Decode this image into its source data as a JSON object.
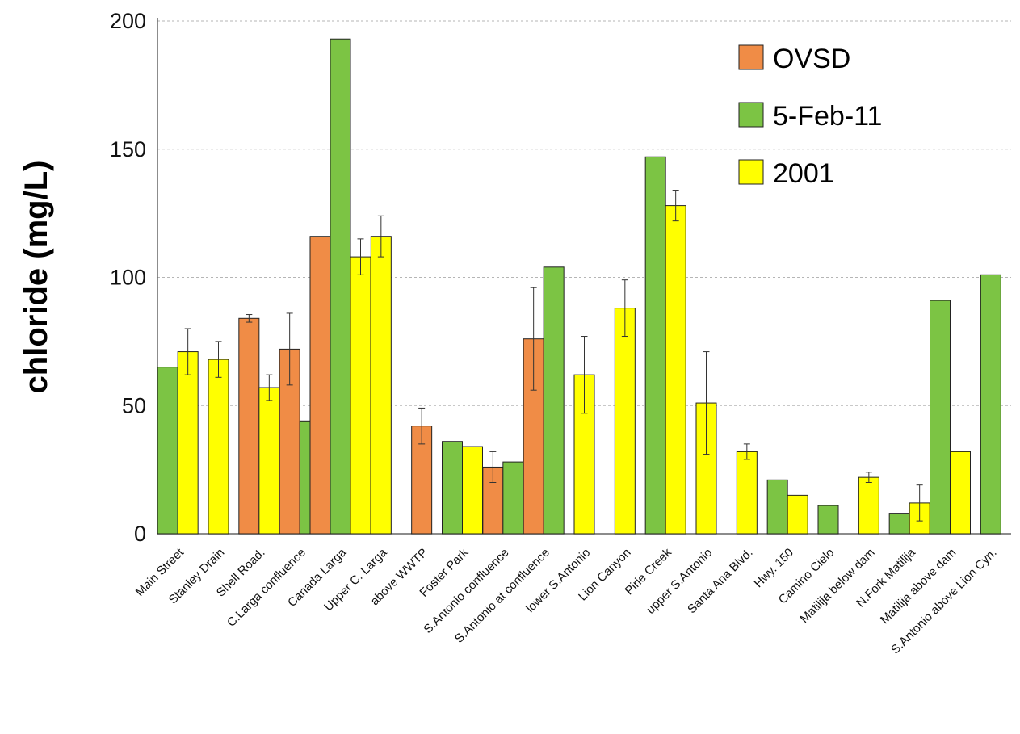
{
  "chart_data": {
    "type": "bar",
    "title": "",
    "xlabel": "",
    "ylabel": "chloride (mg/L)",
    "ylim": [
      0,
      200
    ],
    "yticks": [
      0,
      50,
      100,
      150,
      200
    ],
    "grid": true,
    "legend_position": "top-right",
    "categories": [
      "Main Street",
      "Stanley Drain",
      "Shell Road.",
      "C.Larga confluence",
      "Canada Larga",
      "Upper C. Larga",
      "above WWTP",
      "Foster Park",
      "S.Antonio confluence",
      "S.Antonio at confluence",
      "lower S.Antonio",
      "Lion Canyon",
      "Pirie Creek",
      "upper S.Antonio",
      "Santa Ana Blvd.",
      "Hwy. 150",
      "Camino Cielo",
      "Matilija below dam",
      "N.Fork Matilija",
      "Matilija above dam",
      "S.Antonio above Lion Cyn."
    ],
    "series": [
      {
        "name": "OVSD",
        "color": "#F08C46",
        "values": [
          null,
          null,
          84,
          72,
          116,
          null,
          42,
          null,
          26,
          76,
          null,
          null,
          null,
          null,
          null,
          null,
          null,
          null,
          null,
          null,
          null
        ],
        "error": [
          null,
          null,
          1.5,
          14,
          null,
          null,
          7,
          null,
          6,
          20,
          null,
          null,
          null,
          null,
          null,
          null,
          null,
          null,
          null,
          null,
          null
        ]
      },
      {
        "name": "5-Feb-11",
        "color": "#7CC444",
        "values": [
          65,
          null,
          null,
          44,
          193,
          null,
          null,
          36,
          28,
          104,
          null,
          null,
          147,
          null,
          null,
          21,
          11,
          null,
          8,
          91,
          101
        ],
        "error": [
          null,
          null,
          null,
          null,
          null,
          null,
          null,
          null,
          null,
          null,
          null,
          null,
          null,
          null,
          null,
          null,
          null,
          null,
          null,
          null,
          null
        ]
      },
      {
        "name": "2001",
        "color": "#FFFF00",
        "values": [
          71,
          68,
          57,
          null,
          108,
          116,
          null,
          34,
          null,
          null,
          62,
          88,
          128,
          51,
          32,
          15,
          null,
          22,
          12,
          32,
          null
        ],
        "error": [
          9,
          7,
          5,
          null,
          7,
          8,
          null,
          null,
          null,
          null,
          15,
          11,
          6,
          20,
          3,
          null,
          null,
          2,
          7,
          null,
          null
        ]
      }
    ]
  }
}
